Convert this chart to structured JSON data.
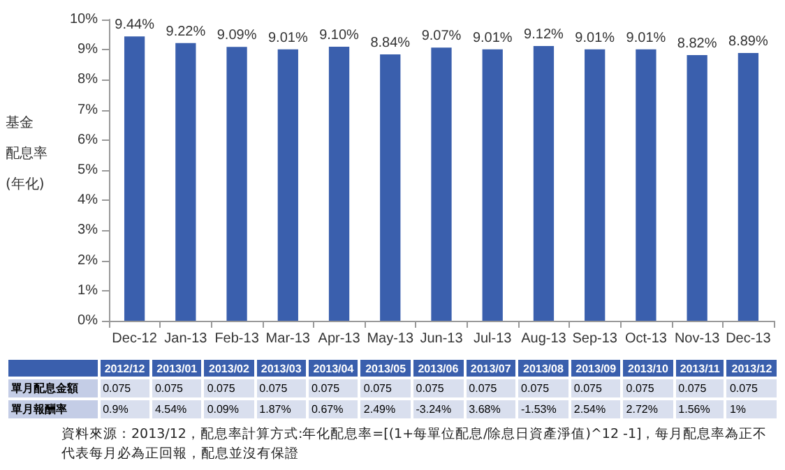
{
  "chart_data": [
    {
      "type": "bar",
      "ylabel": "基金配息率(年化)",
      "categories": [
        "Dec-12",
        "Jan-13",
        "Feb-13",
        "Mar-13",
        "Apr-13",
        "May-13",
        "Jun-13",
        "Jul-13",
        "Aug-13",
        "Sep-13",
        "Oct-13",
        "Nov-13",
        "Dec-13"
      ],
      "values": [
        9.44,
        9.22,
        9.09,
        9.01,
        9.1,
        8.84,
        9.07,
        9.01,
        9.12,
        9.01,
        9.01,
        8.82,
        8.89
      ],
      "value_labels": [
        "9.44%",
        "9.22%",
        "9.09%",
        "9.01%",
        "9.10%",
        "8.84%",
        "9.07%",
        "9.01%",
        "9.12%",
        "9.01%",
        "9.01%",
        "8.82%",
        "8.89%"
      ],
      "color": "#3a5fad",
      "ylim": [
        0,
        10
      ],
      "yticks": [
        {
          "value": 0,
          "label": "0%"
        },
        {
          "value": 1,
          "label": "1%"
        },
        {
          "value": 2,
          "label": "2%"
        },
        {
          "value": 3,
          "label": "3%"
        },
        {
          "value": 4,
          "label": "4%"
        },
        {
          "value": 5,
          "label": "5%"
        },
        {
          "value": 6,
          "label": "6%"
        },
        {
          "value": 7,
          "label": "7%"
        },
        {
          "value": 8,
          "label": "8%"
        },
        {
          "value": 9,
          "label": "9%"
        },
        {
          "value": 10,
          "label": "10%"
        }
      ],
      "grid": false
    },
    {
      "type": "other",
      "categories": [
        "2012/12",
        "2013/01",
        "2013/02",
        "2013/03",
        "2013/04",
        "2013/05",
        "2013/06",
        "2013/07",
        "2013/08",
        "2013/09",
        "2013/10",
        "2013/11",
        "2013/12"
      ],
      "series": [
        {
          "name": "單月配息金額",
          "values": [
            0.075,
            0.075,
            0.075,
            0.075,
            0.075,
            0.075,
            0.075,
            0.075,
            0.075,
            0.075,
            0.075,
            0.075,
            0.075
          ],
          "value_labels": [
            "0.075",
            "0.075",
            "0.075",
            "0.075",
            "0.075",
            "0.075",
            "0.075",
            "0.075",
            "0.075",
            "0.075",
            "0.075",
            "0.075",
            "0.075"
          ]
        },
        {
          "name": "單月報酬率",
          "values": [
            0.9,
            4.54,
            0.09,
            1.87,
            0.67,
            2.49,
            -3.24,
            3.68,
            -1.53,
            2.54,
            2.72,
            1.56,
            1
          ],
          "value_labels": [
            "0.9%",
            "4.54%",
            "0.09%",
            "1.87%",
            "0.67%",
            "2.49%",
            "-3.24%",
            "3.68%",
            "-1.53%",
            "2.54%",
            "2.72%",
            "1.56%",
            "1%"
          ]
        }
      ],
      "annotations": [
        "資料來源：2013/12，配息率計算方式:年化配息率=[(1+每單位配息/除息日資產淨值)^12 -1]，每月配息率為正不代表每月必為正回報，配息並沒有保證"
      ]
    }
  ]
}
